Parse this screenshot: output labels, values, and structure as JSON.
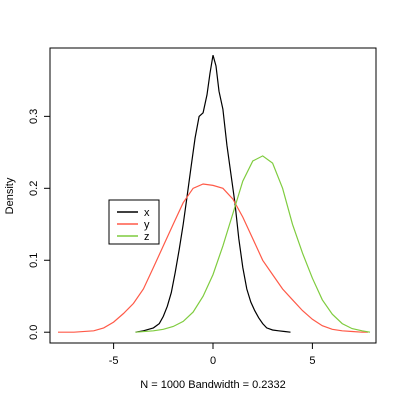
{
  "chart_data": {
    "type": "line",
    "title": "",
    "xlabel": "N = 1000   Bandwidth = 0.2332",
    "ylabel": "Density",
    "xlim": [
      -8.2,
      8.2
    ],
    "ylim": [
      -0.015,
      0.395
    ],
    "xticks": [
      -5,
      0,
      5
    ],
    "yticks": [
      0.0,
      0.1,
      0.2,
      0.3
    ],
    "ytick_labels": [
      "0.0",
      "0.1",
      "0.2",
      "0.3"
    ],
    "grid": false,
    "legend": {
      "placement": "center-left"
    },
    "series": [
      {
        "name": "x",
        "color": "#000000",
        "x": [
          -3.9,
          -3.5,
          -3.0,
          -2.7,
          -2.5,
          -2.3,
          -2.1,
          -1.9,
          -1.7,
          -1.5,
          -1.3,
          -1.1,
          -0.9,
          -0.7,
          -0.5,
          -0.3,
          -0.15,
          0.0,
          0.15,
          0.3,
          0.5,
          0.7,
          0.9,
          1.1,
          1.3,
          1.5,
          1.7,
          1.9,
          2.1,
          2.3,
          2.5,
          2.7,
          3.0,
          3.3,
          3.6,
          3.9
        ],
        "y": [
          0.0,
          0.002,
          0.006,
          0.012,
          0.022,
          0.036,
          0.055,
          0.083,
          0.115,
          0.15,
          0.19,
          0.23,
          0.27,
          0.3,
          0.305,
          0.33,
          0.36,
          0.385,
          0.37,
          0.335,
          0.31,
          0.26,
          0.22,
          0.18,
          0.13,
          0.09,
          0.06,
          0.042,
          0.03,
          0.02,
          0.012,
          0.006,
          0.003,
          0.002,
          0.001,
          0.0
        ]
      },
      {
        "name": "y",
        "color": "#ff5a48",
        "x": [
          -7.8,
          -7.0,
          -6.0,
          -5.5,
          -5.0,
          -4.5,
          -4.0,
          -3.5,
          -3.0,
          -2.5,
          -2.0,
          -1.5,
          -1.0,
          -0.5,
          0.0,
          0.5,
          1.0,
          1.5,
          2.0,
          2.5,
          3.0,
          3.5,
          4.0,
          4.5,
          5.0,
          5.5,
          6.0,
          6.5,
          7.0,
          7.5,
          7.8
        ],
        "y": [
          0.0,
          0.0,
          0.002,
          0.006,
          0.014,
          0.026,
          0.04,
          0.06,
          0.09,
          0.12,
          0.15,
          0.18,
          0.2,
          0.206,
          0.204,
          0.2,
          0.185,
          0.16,
          0.13,
          0.1,
          0.08,
          0.06,
          0.045,
          0.03,
          0.018,
          0.009,
          0.004,
          0.002,
          0.001,
          0.0,
          0.0
        ]
      },
      {
        "name": "z",
        "color": "#7fcc3f",
        "x": [
          -3.9,
          -3.0,
          -2.5,
          -2.0,
          -1.5,
          -1.0,
          -0.5,
          0.0,
          0.5,
          1.0,
          1.5,
          2.0,
          2.5,
          3.0,
          3.5,
          4.0,
          4.5,
          5.0,
          5.5,
          6.0,
          6.5,
          7.0,
          7.5,
          7.9
        ],
        "y": [
          0.0,
          0.002,
          0.004,
          0.008,
          0.015,
          0.028,
          0.05,
          0.08,
          0.12,
          0.165,
          0.21,
          0.238,
          0.245,
          0.235,
          0.2,
          0.15,
          0.11,
          0.075,
          0.045,
          0.025,
          0.012,
          0.005,
          0.002,
          0.0
        ]
      }
    ]
  }
}
